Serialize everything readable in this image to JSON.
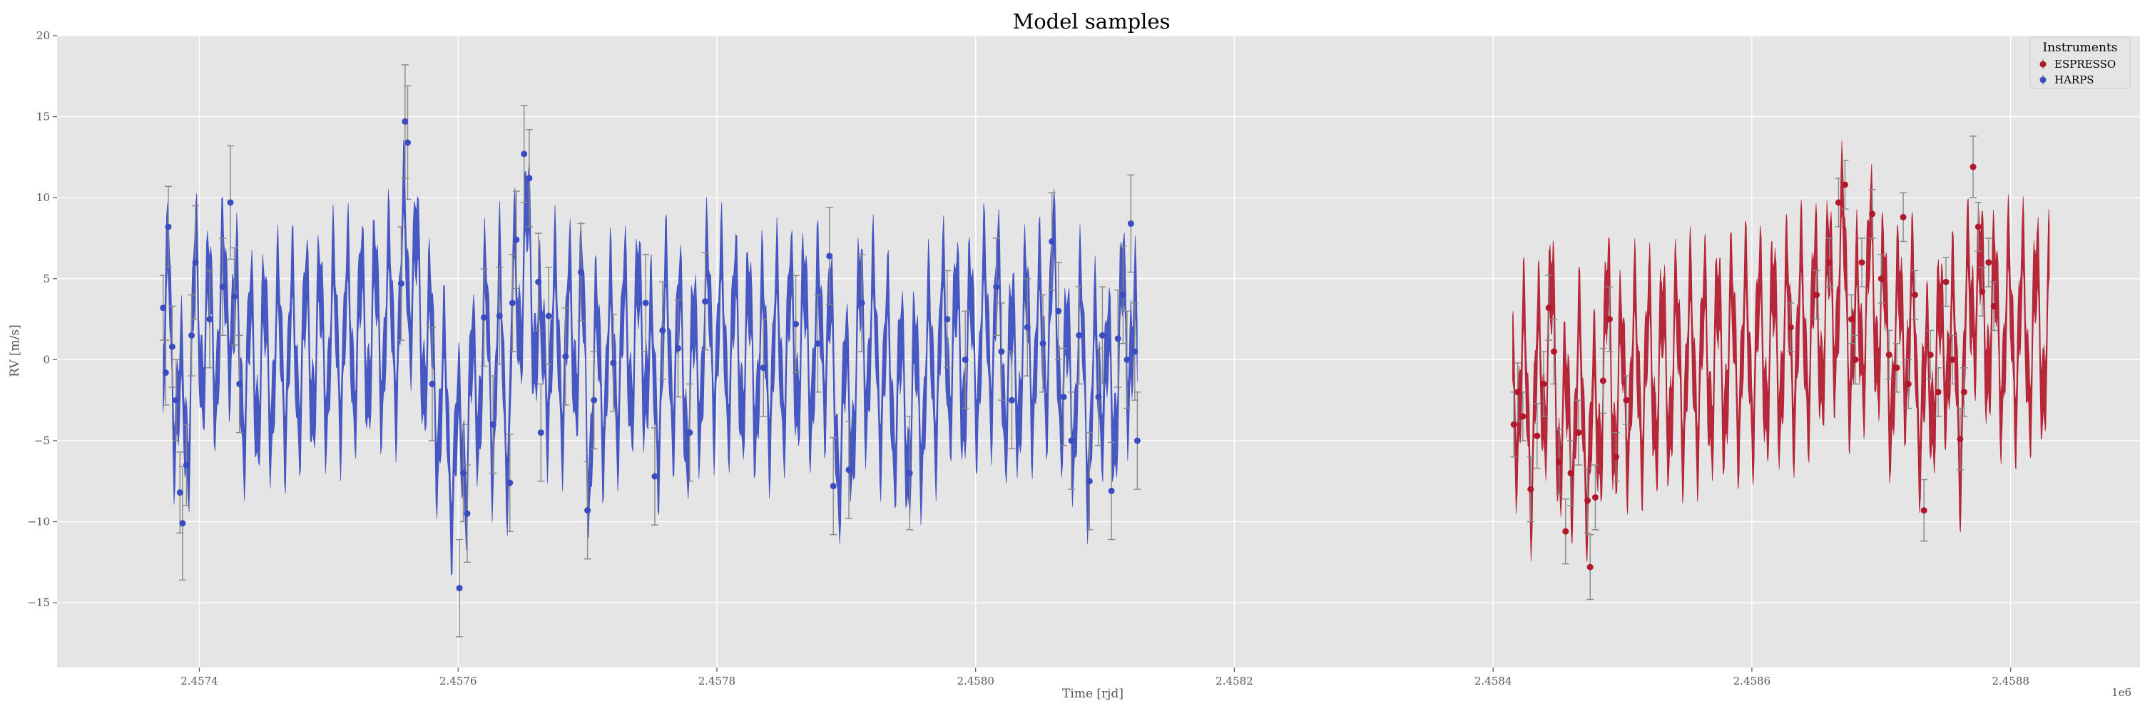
{
  "chart_data": {
    "type": "scatter",
    "title": "Model samples",
    "xlabel": "Time [rjd]",
    "ylabel": "RV [m/s]",
    "x_offset_label": "1e6",
    "xlim": [
      2457290,
      2458900
    ],
    "ylim": [
      -19,
      20
    ],
    "x_ticks": [
      2457400,
      2457600,
      2457800,
      2458000,
      2458200,
      2458400,
      2458600,
      2458800
    ],
    "x_tick_labels": [
      "2.4574",
      "2.4576",
      "2.4578",
      "2.4580",
      "2.4582",
      "2.4584",
      "2.4586",
      "2.4588"
    ],
    "y_ticks": [
      -15,
      -10,
      -5,
      0,
      5,
      10,
      15,
      20
    ],
    "y_tick_labels": [
      "−15",
      "−10",
      "−5",
      "0",
      "5",
      "10",
      "15",
      "20"
    ],
    "grid": true,
    "background": "#e5e5e5",
    "legend": {
      "title": "Instruments",
      "position": "top-right"
    },
    "series": [
      {
        "name": "ESPRESSO",
        "color": "#b2182b",
        "model_range": [
          2458415,
          2458830
        ],
        "points": [
          [
            2458416,
            -4.0,
            2.0
          ],
          [
            2458419,
            -2.0,
            1.8
          ],
          [
            2458423,
            -3.5,
            1.5
          ],
          [
            2458429,
            -8.0,
            2.0
          ],
          [
            2458434,
            -4.7,
            2.0
          ],
          [
            2458439,
            -1.5,
            2.0
          ],
          [
            2458443,
            3.2,
            2.0
          ],
          [
            2458447,
            0.5,
            2.0
          ],
          [
            2458451,
            -6.3,
            2.0
          ],
          [
            2458456,
            -10.6,
            2.0
          ],
          [
            2458460,
            -7.0,
            2.0
          ],
          [
            2458466,
            -4.5,
            2.0
          ],
          [
            2458473,
            -8.7,
            2.0
          ],
          [
            2458475,
            -12.8,
            2.0
          ],
          [
            2458479,
            -8.5,
            2.0
          ],
          [
            2458485,
            -1.3,
            2.0
          ],
          [
            2458490,
            2.5,
            2.0
          ],
          [
            2458495,
            -6.0,
            1.5
          ],
          [
            2458503,
            -2.5,
            1.5
          ],
          [
            2458630,
            2.0,
            1.5
          ],
          [
            2458650,
            4.0,
            1.5
          ],
          [
            2458660,
            6.0,
            1.5
          ],
          [
            2458667,
            9.7,
            1.5
          ],
          [
            2458672,
            10.8,
            1.5
          ],
          [
            2458677,
            2.5,
            1.5
          ],
          [
            2458680,
            0.0,
            1.5
          ],
          [
            2458685,
            6.0,
            1.5
          ],
          [
            2458693,
            9.0,
            1.5
          ],
          [
            2458700,
            5.0,
            1.5
          ],
          [
            2458706,
            0.3,
            1.5
          ],
          [
            2458712,
            -0.5,
            1.5
          ],
          [
            2458717,
            8.8,
            1.5
          ],
          [
            2458721,
            -1.5,
            1.5
          ],
          [
            2458726,
            4.0,
            1.5
          ],
          [
            2458733,
            -9.3,
            1.9
          ],
          [
            2458738,
            0.3,
            1.5
          ],
          [
            2458744,
            -2.0,
            1.5
          ],
          [
            2458750,
            4.8,
            1.5
          ],
          [
            2458755,
            0.0,
            1.5
          ],
          [
            2458761,
            -4.9,
            1.9
          ],
          [
            2458764,
            -2.0,
            1.5
          ],
          [
            2458771,
            11.9,
            1.9
          ],
          [
            2458775,
            8.2,
            1.5
          ],
          [
            2458778,
            4.2,
            1.5
          ],
          [
            2458783,
            6.0,
            1.5
          ],
          [
            2458787,
            3.3,
            1.5
          ]
        ]
      },
      {
        "name": "HARPS",
        "color": "#3b4cc0",
        "model_range": [
          2457372,
          2458125
        ],
        "points": [
          [
            2457372,
            3.2,
            2.0
          ],
          [
            2457374,
            -0.8,
            2.0
          ],
          [
            2457376,
            8.2,
            2.5
          ],
          [
            2457379,
            0.8,
            2.5
          ],
          [
            2457382,
            -2.5,
            2.5
          ],
          [
            2457385,
            -8.2,
            2.5
          ],
          [
            2457387,
            -10.1,
            3.5
          ],
          [
            2457390,
            -6.5,
            2.5
          ],
          [
            2457394,
            1.5,
            2.5
          ],
          [
            2457397,
            6.0,
            3.5
          ],
          [
            2457408,
            2.5,
            3.0
          ],
          [
            2457418,
            4.5,
            3.0
          ],
          [
            2457424,
            9.7,
            3.5
          ],
          [
            2457427,
            3.9,
            3.0
          ],
          [
            2457431,
            -1.5,
            3.0
          ],
          [
            2457556,
            4.7,
            3.5
          ],
          [
            2457559,
            14.7,
            3.5
          ],
          [
            2457561,
            13.4,
            3.5
          ],
          [
            2457580,
            -1.5,
            3.5
          ],
          [
            2457601,
            -14.1,
            3.0
          ],
          [
            2457604,
            -7.0,
            3.0
          ],
          [
            2457607,
            -9.5,
            3.0
          ],
          [
            2457620,
            2.6,
            3.0
          ],
          [
            2457627,
            -4.0,
            3.0
          ],
          [
            2457632,
            2.7,
            3.0
          ],
          [
            2457640,
            -7.6,
            3.0
          ],
          [
            2457642,
            3.5,
            3.0
          ],
          [
            2457645,
            7.4,
            3.0
          ],
          [
            2457651,
            12.7,
            3.0
          ],
          [
            2457655,
            11.2,
            3.0
          ],
          [
            2457662,
            4.8,
            3.0
          ],
          [
            2457664,
            -4.5,
            3.0
          ],
          [
            2457670,
            2.7,
            3.0
          ],
          [
            2457683,
            0.2,
            3.0
          ],
          [
            2457695,
            5.4,
            3.0
          ],
          [
            2457700,
            -9.3,
            3.0
          ],
          [
            2457705,
            -2.5,
            3.0
          ],
          [
            2457720,
            -0.2,
            3.0
          ],
          [
            2457745,
            3.5,
            3.0
          ],
          [
            2457752,
            -7.2,
            3.0
          ],
          [
            2457758,
            1.8,
            3.0
          ],
          [
            2457770,
            0.7,
            3.0
          ],
          [
            2457779,
            -4.5,
            3.0
          ],
          [
            2457791,
            3.6,
            3.0
          ],
          [
            2457836,
            -0.5,
            3.0
          ],
          [
            2457861,
            2.2,
            3.0
          ],
          [
            2457878,
            1.0,
            3.0
          ],
          [
            2457887,
            6.4,
            3.0
          ],
          [
            2457890,
            -7.8,
            3.0
          ],
          [
            2457902,
            -6.8,
            3.0
          ],
          [
            2457912,
            3.5,
            3.0
          ],
          [
            2457949,
            -7.0,
            3.5
          ],
          [
            2457978,
            2.5,
            3.0
          ],
          [
            2457992,
            0.0,
            3.0
          ],
          [
            2458016,
            4.5,
            3.0
          ],
          [
            2458020,
            0.5,
            3.0
          ],
          [
            2458028,
            -2.5,
            3.0
          ],
          [
            2458040,
            2.0,
            3.0
          ],
          [
            2458052,
            1.0,
            3.0
          ],
          [
            2458059,
            7.3,
            3.0
          ],
          [
            2458064,
            3.0,
            3.0
          ],
          [
            2458068,
            -2.3,
            3.0
          ],
          [
            2458074,
            -5.0,
            3.0
          ],
          [
            2458080,
            1.5,
            3.0
          ],
          [
            2458088,
            -7.5,
            3.0
          ],
          [
            2458095,
            -2.3,
            3.0
          ],
          [
            2458098,
            1.5,
            3.0
          ],
          [
            2458105,
            -8.1,
            3.0
          ],
          [
            2458110,
            1.3,
            3.0
          ],
          [
            2458114,
            4.0,
            3.0
          ],
          [
            2458117,
            0.0,
            3.0
          ],
          [
            2458120,
            8.4,
            3.0
          ],
          [
            2458123,
            0.5,
            3.0
          ],
          [
            2458125,
            -5.0,
            3.0
          ]
        ]
      }
    ]
  }
}
